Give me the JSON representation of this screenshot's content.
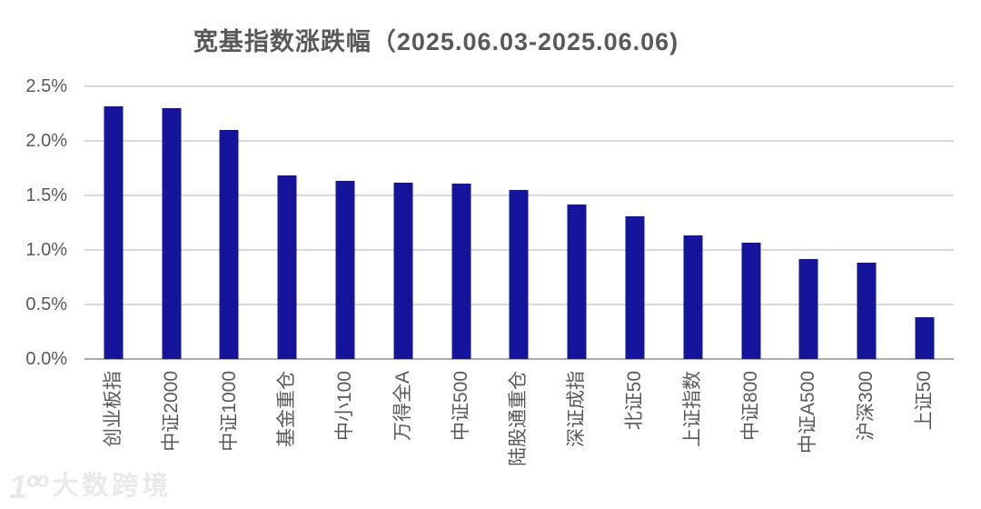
{
  "title": "宽基指数涨跌幅（2025.06.03-2025.06.06)",
  "watermark": {
    "logo": "1ºº",
    "text": "大数跨境"
  },
  "colors": {
    "bar": "#15159B",
    "text": "#595959",
    "gridline": "#D9D9D9",
    "baseline": "#ADADAD",
    "watermark": "#E9E9E9",
    "background": "#FFFFFF"
  },
  "chart_data": {
    "type": "bar",
    "title": "宽基指数涨跌幅（2025.06.03-2025.06.06)",
    "categories": [
      "创业板指",
      "中证2000",
      "中证1000",
      "基金重仓",
      "中小100",
      "万得全A",
      "中证500",
      "陆股通重仓",
      "深证成指",
      "北证50",
      "上证指数",
      "中证800",
      "中证A500",
      "沪深300",
      "上证50"
    ],
    "values": [
      2.32,
      2.3,
      2.1,
      1.68,
      1.63,
      1.62,
      1.61,
      1.55,
      1.42,
      1.31,
      1.13,
      1.07,
      0.92,
      0.88,
      0.38
    ],
    "unit": "%",
    "xlabel": "",
    "ylabel": "",
    "ylim": [
      0,
      2.5
    ],
    "ytick_step": 0.5,
    "yticks": [
      "0.0%",
      "0.5%",
      "1.0%",
      "1.5%",
      "2.0%",
      "2.5%"
    ],
    "grid": true,
    "legend": false,
    "bar_orientation": "vertical",
    "category_label_rotation_deg": -90
  }
}
